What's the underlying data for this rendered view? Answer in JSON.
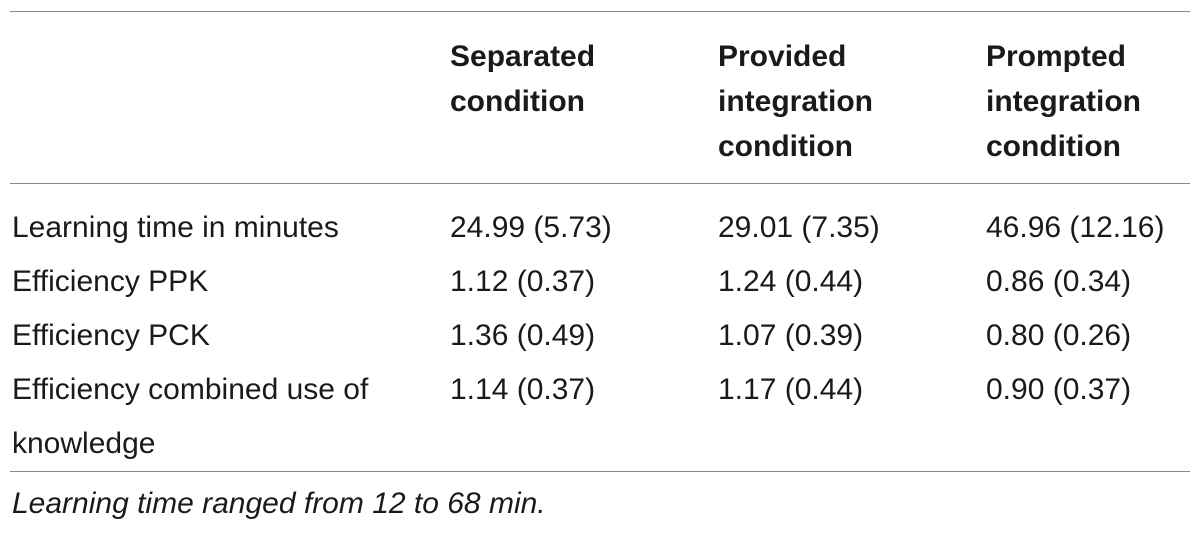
{
  "table": {
    "columns": [
      "",
      "Separated\ncondition",
      "Provided\nintegration\ncondition",
      "Prompted\nintegration\ncondition"
    ],
    "rows": [
      {
        "label": "Learning time in minutes",
        "values": [
          "24.99 (5.73)",
          "29.01 (7.35)",
          "46.96 (12.16)"
        ]
      },
      {
        "label": "Efficiency PPK",
        "values": [
          "1.12 (0.37)",
          "1.24 (0.44)",
          "0.86 (0.34)"
        ]
      },
      {
        "label": "Efficiency PCK",
        "values": [
          "1.36 (0.49)",
          "1.07 (0.39)",
          "0.80 (0.26)"
        ]
      },
      {
        "label": "Efficiency combined use of knowledge",
        "values": [
          "1.14 (0.37)",
          "1.17 (0.44)",
          "0.90 (0.37)"
        ]
      }
    ],
    "footnote": "Learning time ranged from 12 to 68 min."
  }
}
